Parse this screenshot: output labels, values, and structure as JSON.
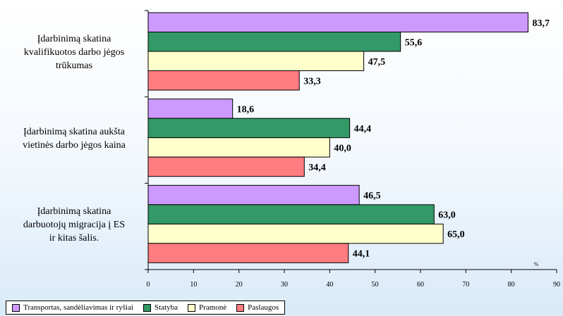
{
  "chart_data": {
    "type": "bar",
    "orientation": "horizontal",
    "categories": [
      [
        "Įdarbinimą skatina",
        "kvalifikuotos darbo jėgos",
        "trūkumas"
      ],
      [
        "Įdarbinimą skatina aukšta",
        "vietinės darbo jėgos kaina"
      ],
      [
        "Įdarbinimą skatina",
        "darbuotojų migracija į ES",
        "ir kitas šalis."
      ]
    ],
    "series": [
      {
        "name": "Transportas, sandėliavimas ir ryšiai",
        "color": "#cc99ff",
        "values": [
          83.7,
          18.6,
          46.5
        ],
        "labels": [
          "83,7",
          "18,6",
          "46,5"
        ]
      },
      {
        "name": "Statyba",
        "color": "#339966",
        "values": [
          55.6,
          44.4,
          63.0
        ],
        "labels": [
          "55,6",
          "44,4",
          "63,0"
        ]
      },
      {
        "name": "Pramonė",
        "color": "#ffffcc",
        "values": [
          47.5,
          40.0,
          65.0
        ],
        "labels": [
          "47,5",
          "40,0",
          "65,0"
        ]
      },
      {
        "name": "Paslaugos",
        "color": "#ff7c80",
        "values": [
          33.3,
          34.4,
          44.1
        ],
        "labels": [
          "33,3",
          "34,4",
          "44,1"
        ]
      }
    ],
    "xlim": [
      0,
      90
    ],
    "xticks": [
      0,
      10,
      20,
      30,
      40,
      50,
      60,
      70,
      80,
      90
    ],
    "unit_label": "%",
    "grid": false,
    "legend_position": "bottom"
  }
}
